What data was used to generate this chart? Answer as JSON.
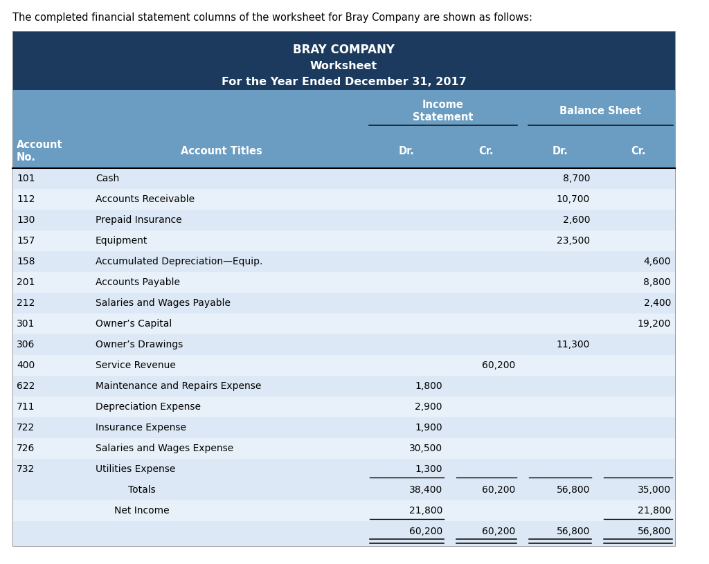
{
  "intro_text": "The completed financial statement columns of the worksheet for Bray Company are shown as follows:",
  "company": "BRAY COMPANY",
  "doc_title": "Worksheet",
  "period": "For the Year Ended December 31, 2017",
  "header_bg": "#1b3a5e",
  "subheader_bg": "#6b9dc2",
  "row_bg_even": "#dce8f5",
  "row_bg_odd": "#e8f1fa",
  "rows": [
    {
      "no": "101",
      "title": "Cash",
      "is_dr": "",
      "is_cr": "",
      "bs_dr": "8,700",
      "bs_cr": ""
    },
    {
      "no": "112",
      "title": "Accounts Receivable",
      "is_dr": "",
      "is_cr": "",
      "bs_dr": "10,700",
      "bs_cr": ""
    },
    {
      "no": "130",
      "title": "Prepaid Insurance",
      "is_dr": "",
      "is_cr": "",
      "bs_dr": "2,600",
      "bs_cr": ""
    },
    {
      "no": "157",
      "title": "Equipment",
      "is_dr": "",
      "is_cr": "",
      "bs_dr": "23,500",
      "bs_cr": ""
    },
    {
      "no": "158",
      "title": "Accumulated Depreciation—Equip.",
      "is_dr": "",
      "is_cr": "",
      "bs_dr": "",
      "bs_cr": "4,600"
    },
    {
      "no": "201",
      "title": "Accounts Payable",
      "is_dr": "",
      "is_cr": "",
      "bs_dr": "",
      "bs_cr": "8,800"
    },
    {
      "no": "212",
      "title": "Salaries and Wages Payable",
      "is_dr": "",
      "is_cr": "",
      "bs_dr": "",
      "bs_cr": "2,400"
    },
    {
      "no": "301",
      "title": "Owner’s Capital",
      "is_dr": "",
      "is_cr": "",
      "bs_dr": "",
      "bs_cr": "19,200"
    },
    {
      "no": "306",
      "title": "Owner’s Drawings",
      "is_dr": "",
      "is_cr": "",
      "bs_dr": "11,300",
      "bs_cr": ""
    },
    {
      "no": "400",
      "title": "Service Revenue",
      "is_dr": "",
      "is_cr": "60,200",
      "bs_dr": "",
      "bs_cr": ""
    },
    {
      "no": "622",
      "title": "Maintenance and Repairs Expense",
      "is_dr": "1,800",
      "is_cr": "",
      "bs_dr": "",
      "bs_cr": ""
    },
    {
      "no": "711",
      "title": "Depreciation Expense",
      "is_dr": "2,900",
      "is_cr": "",
      "bs_dr": "",
      "bs_cr": ""
    },
    {
      "no": "722",
      "title": "Insurance Expense",
      "is_dr": "1,900",
      "is_cr": "",
      "bs_dr": "",
      "bs_cr": ""
    },
    {
      "no": "726",
      "title": "Salaries and Wages Expense",
      "is_dr": "30,500",
      "is_cr": "",
      "bs_dr": "",
      "bs_cr": ""
    },
    {
      "no": "732",
      "title": "Utilities Expense",
      "is_dr": "1,300",
      "is_cr": "",
      "bs_dr": "",
      "bs_cr": "",
      "underline": true
    }
  ],
  "totals_row": {
    "label": "Totals",
    "is_dr": "38,400",
    "is_cr": "60,200",
    "bs_dr": "56,800",
    "bs_cr": "35,000"
  },
  "net_income_row": {
    "label": "Net Income",
    "is_dr": "21,800",
    "is_cr": "",
    "bs_dr": "",
    "bs_cr": "21,800"
  },
  "final_row": {
    "label": "",
    "is_dr": "60,200",
    "is_cr": "60,200",
    "bs_dr": "56,800",
    "bs_cr": "56,800"
  }
}
